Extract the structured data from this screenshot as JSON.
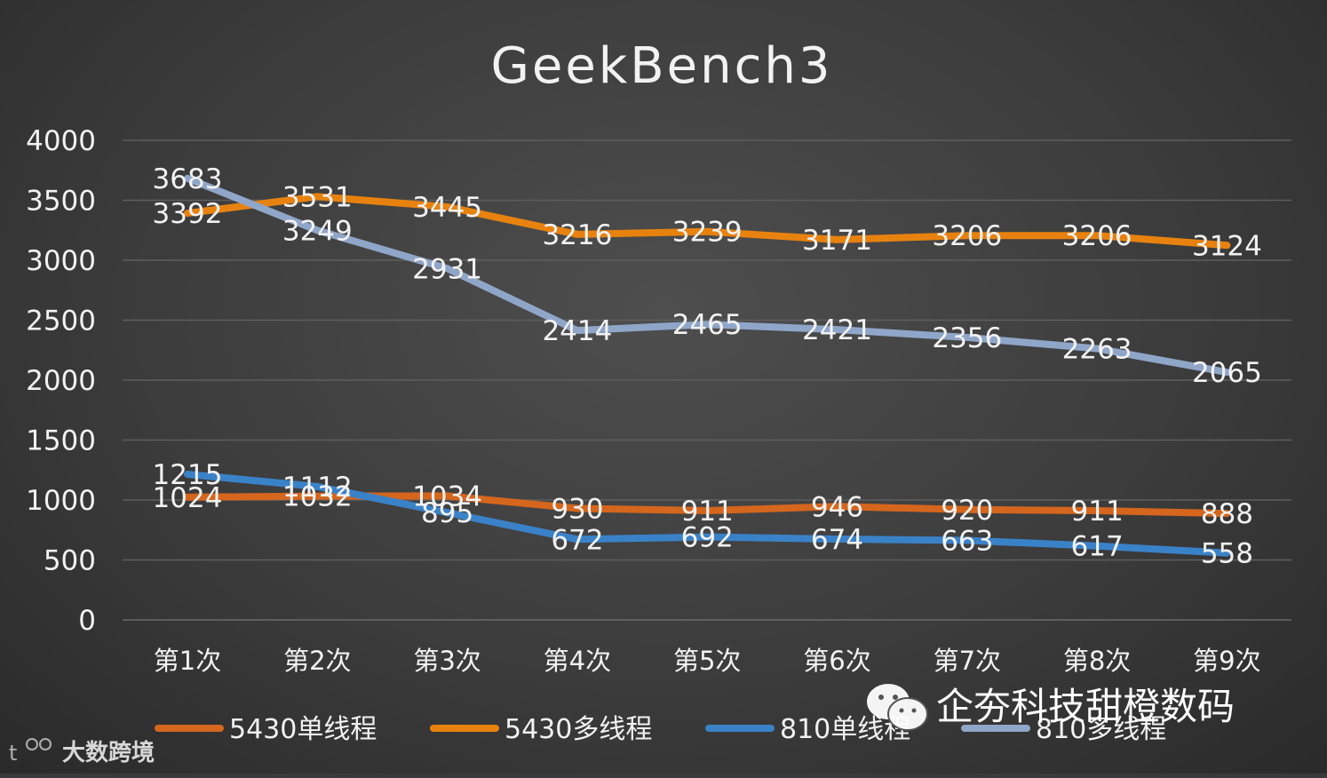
{
  "chart_data": {
    "type": "line",
    "title": "GeekBench3",
    "categories": [
      "第1次",
      "第2次",
      "第3次",
      "第4次",
      "第5次",
      "第6次",
      "第7次",
      "第8次",
      "第9次"
    ],
    "yticks": [
      "0",
      "500",
      "1000",
      "1500",
      "2000",
      "2500",
      "3000",
      "3500",
      "4000"
    ],
    "ylim": [
      0,
      4000
    ],
    "grid": true,
    "legend_position": "bottom",
    "series": [
      {
        "name": "5430单线程",
        "color": "#d5661d",
        "values": [
          1024,
          1032,
          1034,
          930,
          911,
          946,
          920,
          911,
          888
        ]
      },
      {
        "name": "5430多线程",
        "color": "#e8820f",
        "values": [
          3392,
          3531,
          3445,
          3216,
          3239,
          3171,
          3206,
          3206,
          3124
        ]
      },
      {
        "name": "810单线程",
        "color": "#3a82c8",
        "values": [
          1215,
          1112,
          895,
          672,
          692,
          674,
          663,
          617,
          558
        ]
      },
      {
        "name": "810多线程",
        "color": "#8fa6c8",
        "values": [
          3683,
          3249,
          2931,
          2414,
          2465,
          2421,
          2356,
          2263,
          2065
        ]
      }
    ]
  },
  "watermark": {
    "text": "企夯科技甜橙数码",
    "icon": "wechat-icon",
    "logo_text": "大数跨境"
  }
}
